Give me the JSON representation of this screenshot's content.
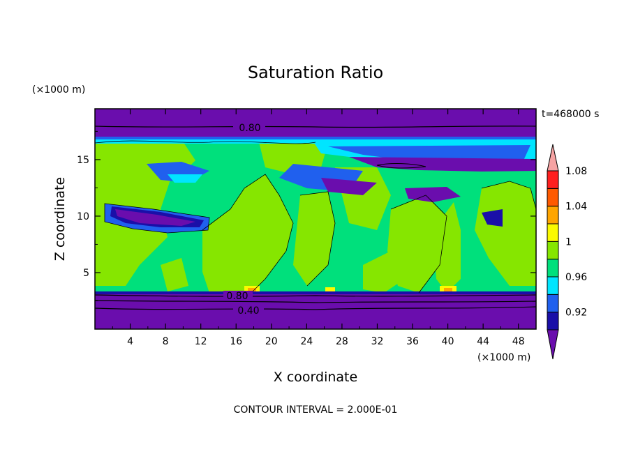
{
  "chart_data": {
    "type": "heatmap",
    "title": "Saturation Ratio",
    "xlabel": "X coordinate",
    "ylabel": "Z coordinate",
    "x_unit": "(×1000 m)",
    "y_unit": "(×1000 m)",
    "time_label": "t=468000 s",
    "footer": "CONTOUR INTERVAL = 2.000E-01",
    "xlim": [
      0,
      50
    ],
    "ylim": [
      0,
      19.5
    ],
    "x_ticks": [
      "4",
      "8",
      "12",
      "16",
      "20",
      "24",
      "28",
      "32",
      "36",
      "40",
      "44",
      "48"
    ],
    "y_ticks": [
      "5",
      "10",
      "15"
    ],
    "colorbar": {
      "levels": [
        0.9,
        0.92,
        0.94,
        0.96,
        0.98,
        1.0,
        1.02,
        1.04,
        1.06,
        1.08,
        1.1
      ],
      "labels": [
        "0.92",
        "0.96",
        "1",
        "1.04",
        "1.08"
      ],
      "colors": [
        "#6a0dad",
        "#1a0fa8",
        "#2060ee",
        "#00e5ff",
        "#00e07c",
        "#86e600",
        "#fbfa00",
        "#ffa500",
        "#ff5a00",
        "#ff2020",
        "#f6a3a3"
      ]
    },
    "contour_labels": [
      {
        "text": "0.80",
        "x": 17.8,
        "z": 18.1
      },
      {
        "text": "0.80",
        "x": 15.8,
        "z": 2.9
      },
      {
        "text": "0.40",
        "x": 17.0,
        "z": 1.6
      }
    ],
    "vertical_profile": [
      {
        "z_from": 18.6,
        "z_to": 19.5,
        "value": 0.7
      },
      {
        "z_from": 17.4,
        "z_to": 18.6,
        "value": 0.8
      },
      {
        "z_from": 16.5,
        "z_to": 17.4,
        "value": 0.95
      },
      {
        "z_from": 3.3,
        "z_to": 16.5,
        "value": 0.99
      },
      {
        "z_from": 0.0,
        "z_to": 3.3,
        "value": 0.6
      }
    ]
  }
}
